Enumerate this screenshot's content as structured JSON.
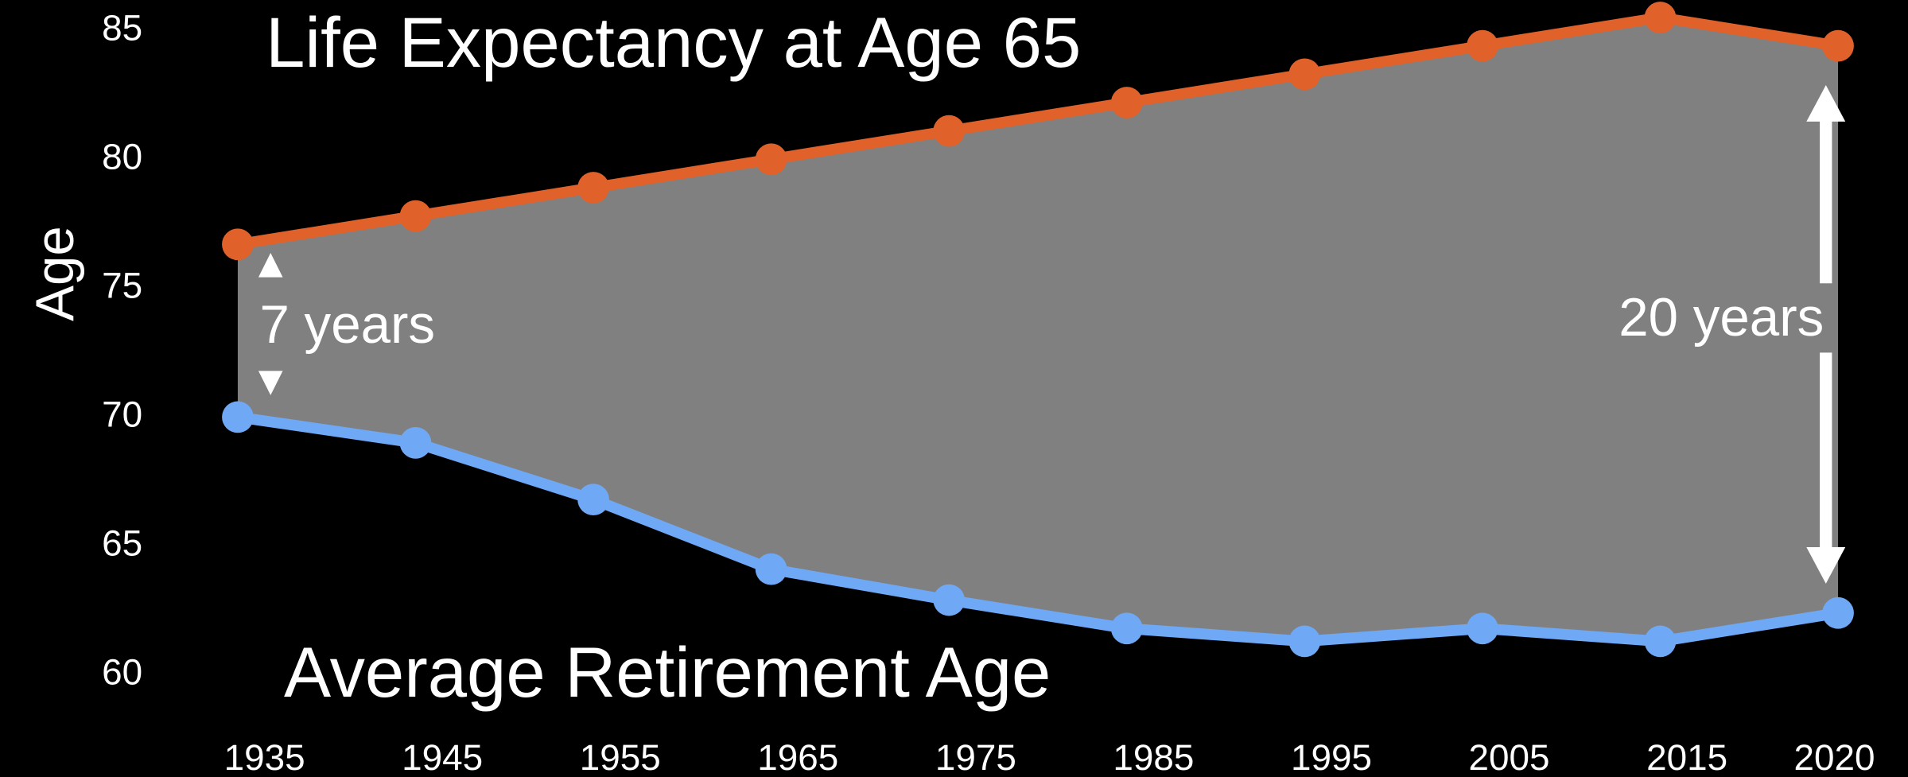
{
  "chart_data": {
    "type": "line",
    "y_label": "Age",
    "categories": [
      "1935",
      "1945",
      "1955",
      "1965",
      "1975",
      "1985",
      "1995",
      "2005",
      "2015",
      "2020"
    ],
    "series": [
      {
        "name": "Life Expectancy at Age 65",
        "color": "#e0622a",
        "values": [
          76.7,
          77.8,
          78.9,
          80.0,
          81.1,
          82.2,
          83.3,
          84.4,
          85.5,
          84.4
        ]
      },
      {
        "name": "Average Retirement Age",
        "color": "#6fa8f5",
        "values": [
          70.0,
          69.0,
          66.8,
          64.1,
          62.9,
          61.8,
          61.3,
          61.8,
          61.3,
          62.4
        ]
      }
    ],
    "fill_between_color": "#808080",
    "annotations": [
      "7 years",
      "20 years"
    ],
    "ylim": [
      60,
      85
    ],
    "yticks": [
      60,
      65,
      70,
      75,
      80,
      85
    ],
    "grid": false
  }
}
